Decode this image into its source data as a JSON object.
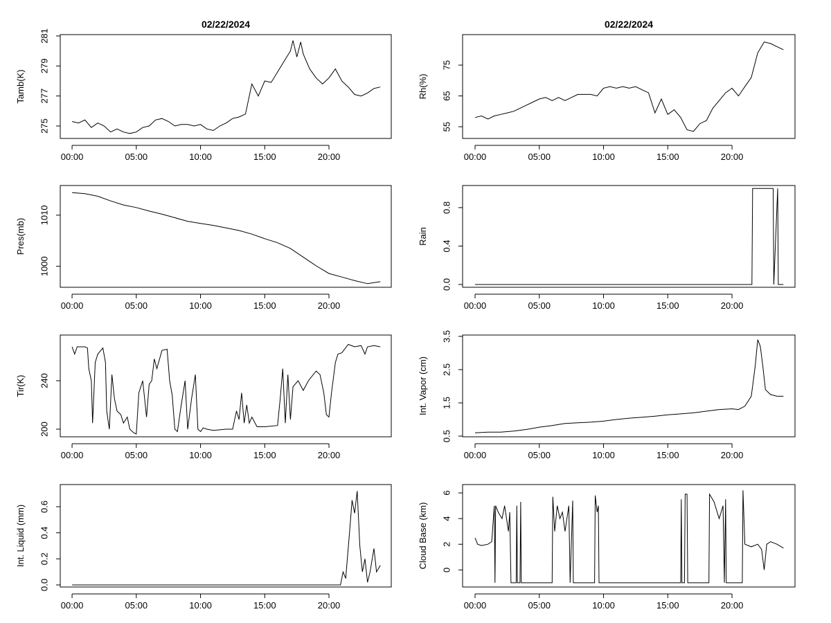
{
  "chart_data": [
    {
      "type": "line",
      "title": "02/22/2024",
      "ylabel": "Tamb(K)",
      "color": "#000000",
      "x": [
        0,
        0.5,
        1,
        1.5,
        2,
        2.5,
        3,
        3.5,
        4,
        4.5,
        5,
        5.5,
        6,
        6.5,
        7,
        7.5,
        8,
        8.5,
        9,
        9.5,
        10,
        10.5,
        11,
        11.5,
        12,
        12.5,
        13,
        13.5,
        14,
        14.5,
        15,
        15.5,
        16,
        16.5,
        17,
        17.2,
        17.5,
        17.8,
        18,
        18.5,
        19,
        19.5,
        20,
        20.5,
        21,
        21.5,
        22,
        22.5,
        23,
        23.5,
        24
      ],
      "values": [
        275.3,
        275.2,
        275.4,
        274.9,
        275.2,
        275.0,
        274.6,
        274.8,
        274.6,
        274.5,
        274.6,
        274.9,
        275.0,
        275.4,
        275.5,
        275.3,
        275.0,
        275.1,
        275.1,
        275.0,
        275.1,
        274.8,
        274.7,
        275.0,
        275.2,
        275.5,
        275.6,
        275.8,
        277.8,
        277.0,
        278.0,
        277.9,
        278.6,
        279.3,
        280.0,
        280.7,
        279.6,
        280.6,
        279.8,
        278.8,
        278.2,
        277.8,
        278.2,
        278.8,
        278.0,
        277.6,
        277.1,
        277.0,
        277.2,
        277.5,
        277.6
      ],
      "xlim": [
        -0.92,
        24.85
      ],
      "ylim": [
        274.17,
        281.09
      ],
      "xticks": [
        {
          "value": 0,
          "label": "00:00"
        },
        {
          "value": 5,
          "label": "05:00"
        },
        {
          "value": 10,
          "label": "10:00"
        },
        {
          "value": 15,
          "label": "15:00"
        },
        {
          "value": 20,
          "label": "20:00"
        }
      ],
      "yticks": [
        275,
        277,
        279,
        281
      ]
    },
    {
      "type": "line",
      "title": "02/22/2024",
      "ylabel": "Rh(%)",
      "color": "#000000",
      "x": [
        0,
        0.5,
        1,
        1.5,
        2,
        2.5,
        3,
        3.5,
        4,
        4.5,
        5,
        5.5,
        6,
        6.5,
        7,
        7.5,
        8,
        8.5,
        9,
        9.5,
        10,
        10.5,
        11,
        11.5,
        12,
        12.5,
        13,
        13.5,
        14,
        14.5,
        15,
        15.5,
        16,
        16.5,
        17,
        17.5,
        18,
        18.5,
        19,
        19.5,
        20,
        20.5,
        21,
        21.5,
        22,
        22.5,
        23,
        23.5,
        24
      ],
      "values": [
        58,
        58.5,
        57.5,
        58.5,
        59,
        59.5,
        60,
        61,
        62,
        63,
        64,
        64.5,
        63.5,
        64.5,
        63.5,
        64.5,
        65.5,
        65.5,
        65.5,
        65,
        67.5,
        68,
        67.5,
        68,
        67.5,
        68,
        67,
        66,
        59.5,
        64,
        59,
        60.5,
        58,
        54,
        53.5,
        56,
        57,
        61,
        63.5,
        66,
        67.5,
        65,
        68,
        71,
        79,
        82.5,
        82,
        81,
        80
      ],
      "xlim": [
        -0.97,
        24.9
      ],
      "ylim": [
        51.2,
        84.9
      ],
      "xticks": [
        {
          "value": 0,
          "label": "00:00"
        },
        {
          "value": 5,
          "label": "05:00"
        },
        {
          "value": 10,
          "label": "10:00"
        },
        {
          "value": 15,
          "label": "15:00"
        },
        {
          "value": 20,
          "label": "20:00"
        }
      ],
      "yticks": [
        55,
        65,
        75
      ]
    },
    {
      "type": "line",
      "ylabel": "Pres(mb)",
      "color": "#000000",
      "x": [
        0,
        1,
        2,
        3,
        4,
        5,
        6,
        7,
        8,
        9,
        10,
        11,
        12,
        13,
        14,
        15,
        16,
        17,
        18,
        19,
        20,
        21,
        22,
        23,
        24
      ],
      "values": [
        1014.4,
        1014.2,
        1013.7,
        1012.8,
        1012.0,
        1011.5,
        1010.8,
        1010.2,
        1009.5,
        1008.8,
        1008.4,
        1008.0,
        1007.5,
        1007.0,
        1006.3,
        1005.4,
        1004.6,
        1003.5,
        1001.8,
        1000.1,
        998.6,
        997.9,
        997.2,
        996.6,
        997.0
      ],
      "xlim": [
        -0.92,
        24.85
      ],
      "ylim": [
        995.9,
        1015.8
      ],
      "xticks": [
        {
          "value": 0,
          "label": "00:00"
        },
        {
          "value": 5,
          "label": "05:00"
        },
        {
          "value": 10,
          "label": "10:00"
        },
        {
          "value": 15,
          "label": "15:00"
        },
        {
          "value": 20,
          "label": "20:00"
        }
      ],
      "yticks": [
        1000,
        1010
      ]
    },
    {
      "type": "line",
      "ylabel": "Rain",
      "color": "#000000",
      "x": [
        0,
        21.55,
        21.6,
        23.2,
        23.25,
        23.55,
        23.6,
        24
      ],
      "values": [
        0,
        0,
        1,
        1,
        0,
        1,
        0,
        0
      ],
      "xlim": [
        -0.97,
        24.9
      ],
      "ylim": [
        -0.029,
        1.03
      ],
      "xticks": [
        {
          "value": 0,
          "label": "00:00"
        },
        {
          "value": 5,
          "label": "05:00"
        },
        {
          "value": 10,
          "label": "10:00"
        },
        {
          "value": 15,
          "label": "15:00"
        },
        {
          "value": 20,
          "label": "20:00"
        }
      ],
      "yticks": [
        {
          "value": 0,
          "label": "0.0"
        },
        0.4,
        0.8
      ]
    },
    {
      "type": "line",
      "ylabel": "Tir(K)",
      "color": "#000000",
      "x": [
        0,
        0.2,
        0.4,
        1,
        1.2,
        1.3,
        1.5,
        1.6,
        1.8,
        2,
        2.4,
        2.6,
        2.7,
        2.9,
        3.1,
        3.3,
        3.5,
        3.8,
        4,
        4.3,
        4.5,
        4.8,
        5,
        5.2,
        5.5,
        5.8,
        6,
        6.2,
        6.4,
        6.6,
        7,
        7.4,
        7.6,
        7.8,
        8,
        8.2,
        8.5,
        8.8,
        9,
        9.3,
        9.6,
        9.8,
        10,
        10.2,
        10.5,
        11,
        12,
        12.5,
        12.8,
        13,
        13.2,
        13.4,
        13.6,
        13.8,
        14,
        14.4,
        15,
        16,
        16.2,
        16.4,
        16.6,
        16.8,
        17,
        17.2,
        17.6,
        18,
        18.4,
        19,
        19.3,
        19.6,
        19.8,
        20,
        20.2,
        20.5,
        20.7,
        21,
        21.5,
        22,
        22.5,
        22.8,
        23,
        23.5,
        24
      ],
      "values": [
        268,
        262,
        268,
        268,
        267,
        250,
        240,
        205,
        255,
        262,
        267,
        255,
        215,
        200,
        245,
        225,
        215,
        212,
        205,
        210,
        200,
        197,
        196,
        230,
        240,
        210,
        237,
        240,
        258,
        250,
        265,
        266,
        240,
        228,
        200,
        198,
        220,
        240,
        200,
        225,
        245,
        200,
        198,
        201,
        200,
        199,
        200,
        200,
        215,
        208,
        230,
        205,
        220,
        205,
        210,
        202,
        202,
        203,
        225,
        250,
        205,
        245,
        208,
        235,
        240,
        232,
        240,
        248,
        245,
        230,
        212,
        210,
        230,
        255,
        262,
        263,
        270,
        268,
        269,
        262,
        268,
        269,
        268
      ],
      "xlim": [
        -0.92,
        24.85
      ],
      "ylim": [
        193.7,
        277.7
      ],
      "xticks": [
        {
          "value": 0,
          "label": "00:00"
        },
        {
          "value": 5,
          "label": "05:00"
        },
        {
          "value": 10,
          "label": "10:00"
        },
        {
          "value": 15,
          "label": "15:00"
        },
        {
          "value": 20,
          "label": "20:00"
        }
      ],
      "yticks": [
        200,
        240
      ]
    },
    {
      "type": "line",
      "ylabel": "Int. Vapor (cm)",
      "color": "#000000",
      "x": [
        0,
        1,
        2,
        3,
        4,
        5,
        6,
        7,
        8,
        9,
        10,
        11,
        12,
        13,
        14,
        15,
        16,
        17,
        18,
        19,
        20,
        20.5,
        21,
        21.5,
        21.8,
        22,
        22.2,
        22.4,
        22.6,
        23,
        23.5,
        24
      ],
      "values": [
        0.6,
        0.62,
        0.62,
        0.65,
        0.7,
        0.77,
        0.82,
        0.88,
        0.9,
        0.92,
        0.95,
        1.0,
        1.04,
        1.07,
        1.1,
        1.14,
        1.17,
        1.2,
        1.25,
        1.3,
        1.32,
        1.3,
        1.4,
        1.7,
        2.6,
        3.4,
        3.2,
        2.6,
        1.9,
        1.75,
        1.7,
        1.7
      ],
      "xlim": [
        -0.97,
        24.9
      ],
      "ylim": [
        0.48,
        3.54
      ],
      "xticks": [
        {
          "value": 0,
          "label": "00:00"
        },
        {
          "value": 5,
          "label": "05:00"
        },
        {
          "value": 10,
          "label": "10:00"
        },
        {
          "value": 15,
          "label": "15:00"
        },
        {
          "value": 20,
          "label": "20:00"
        }
      ],
      "yticks": [
        0.5,
        1.5,
        2.5,
        3.5
      ]
    },
    {
      "type": "line",
      "ylabel": "Int. Liquid (mm)",
      "color": "#000000",
      "x": [
        0,
        20.9,
        21.1,
        21.3,
        21.6,
        21.8,
        22,
        22.2,
        22.4,
        22.6,
        22.8,
        23,
        23.2,
        23.5,
        23.7,
        24
      ],
      "values": [
        0,
        0,
        0.1,
        0.05,
        0.4,
        0.65,
        0.55,
        0.72,
        0.3,
        0.1,
        0.2,
        0.02,
        0.1,
        0.28,
        0.1,
        0.15
      ],
      "xlim": [
        -0.92,
        24.85
      ],
      "ylim": [
        -0.016,
        0.77
      ],
      "xticks": [
        {
          "value": 0,
          "label": "00:00"
        },
        {
          "value": 5,
          "label": "05:00"
        },
        {
          "value": 10,
          "label": "10:00"
        },
        {
          "value": 15,
          "label": "15:00"
        },
        {
          "value": 20,
          "label": "20:00"
        }
      ],
      "yticks": [
        {
          "value": 0,
          "label": "0.0"
        },
        0.2,
        0.4,
        0.6
      ]
    },
    {
      "type": "line",
      "ylabel": "Cloud Base (km)",
      "color": "#000000",
      "x": [
        0,
        0.2,
        0.5,
        1,
        1.3,
        1.5,
        1.55,
        1.6,
        1.8,
        2.1,
        2.3,
        2.6,
        2.7,
        2.8,
        3.2,
        3.25,
        3.3,
        3.5,
        3.55,
        3.6,
        6,
        6.05,
        6.2,
        6.4,
        6.6,
        6.8,
        7,
        7.3,
        7.4,
        7.6,
        7.65,
        9.3,
        9.35,
        9.5,
        9.6,
        9.65,
        16,
        16.05,
        16.1,
        16.3,
        16.35,
        16.5,
        16.55,
        18.2,
        18.25,
        18.6,
        19,
        19.3,
        19.4,
        19.5,
        19.55,
        20.8,
        20.85,
        21,
        21.5,
        22,
        22.3,
        22.5,
        22.7,
        23,
        23.5,
        24
      ],
      "values": [
        2.5,
        2,
        1.9,
        2,
        2.2,
        5,
        -1,
        5,
        4.5,
        4,
        5,
        3,
        4.5,
        -1,
        -1,
        5,
        -1,
        -1,
        5.3,
        -1,
        -1,
        5.7,
        3,
        5,
        4,
        4.5,
        3,
        5,
        -1,
        5.4,
        -1,
        -1,
        5.8,
        4.5,
        5,
        -1,
        -1,
        5.5,
        -1,
        -1,
        5.9,
        5.9,
        -1,
        -1,
        5.9,
        5.3,
        4,
        5,
        -1,
        5.5,
        -1,
        -1,
        6.2,
        2,
        1.8,
        2,
        1.6,
        0,
        2,
        2.2,
        2,
        1.7
      ],
      "xlim": [
        -0.97,
        24.9
      ],
      "ylim": [
        -1.33,
        6.65
      ],
      "xticks": [
        {
          "value": 0,
          "label": "00:00"
        },
        {
          "value": 5,
          "label": "05:00"
        },
        {
          "value": 10,
          "label": "10:00"
        },
        {
          "value": 15,
          "label": "15:00"
        },
        {
          "value": 20,
          "label": "20:00"
        }
      ],
      "yticks": [
        0,
        2,
        4,
        6
      ]
    }
  ]
}
